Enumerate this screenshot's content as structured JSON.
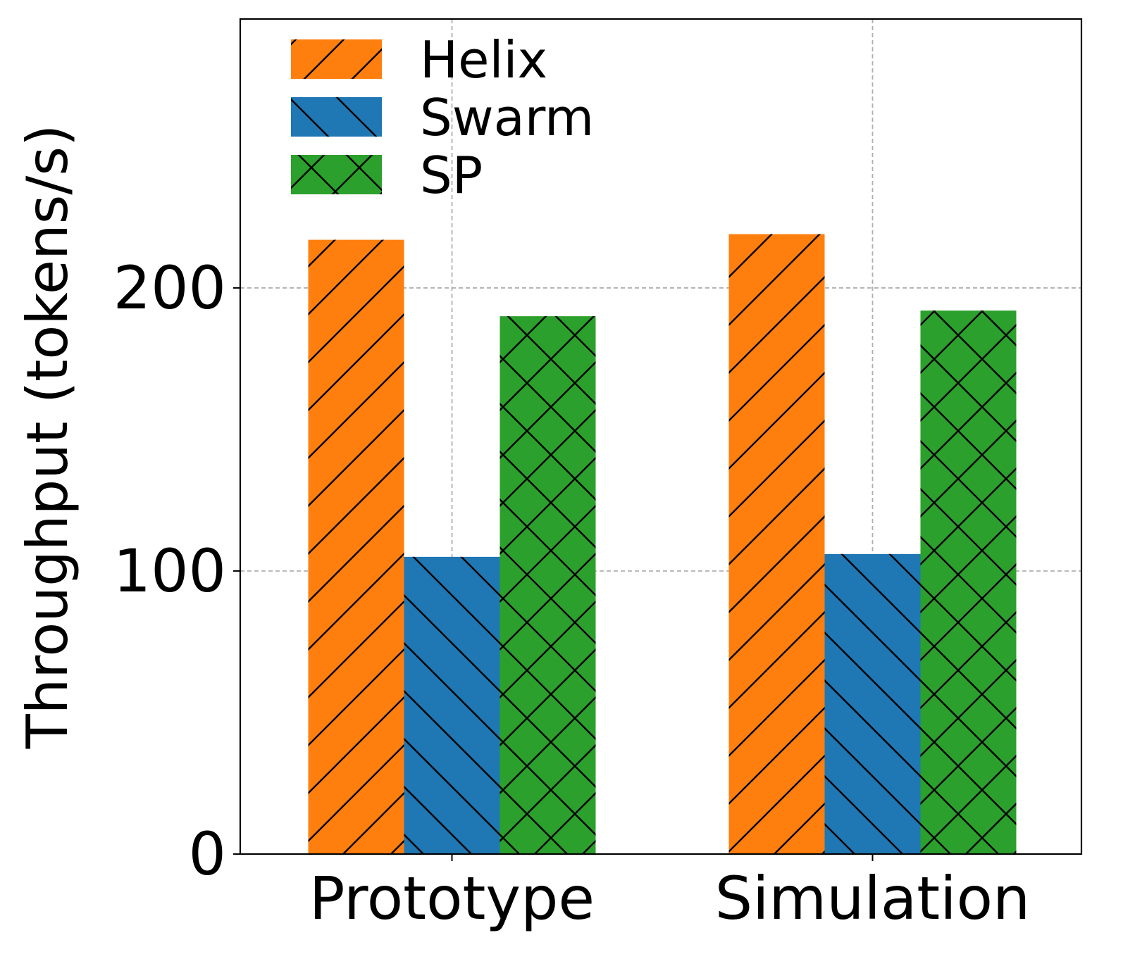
{
  "chart_data": {
    "type": "bar",
    "title": "",
    "xlabel": "",
    "ylabel": "Throughput (tokens/s)",
    "categories": [
      "Prototype",
      "Simulation"
    ],
    "series": [
      {
        "name": "Helix",
        "values": [
          217,
          219
        ],
        "color": "#ff7f0e",
        "hatch": "diagonal-up"
      },
      {
        "name": "Swarm",
        "values": [
          105,
          106
        ],
        "color": "#1f77b4",
        "hatch": "diagonal-down"
      },
      {
        "name": "SP",
        "values": [
          190,
          192
        ],
        "color": "#2ca02c",
        "hatch": "cross"
      }
    ],
    "ylim": [
      0,
      295
    ],
    "yticks": [
      0,
      100,
      200
    ],
    "ytick_labels": [
      "0",
      "100",
      "200"
    ],
    "grid": true,
    "legend_position": "top-left"
  }
}
